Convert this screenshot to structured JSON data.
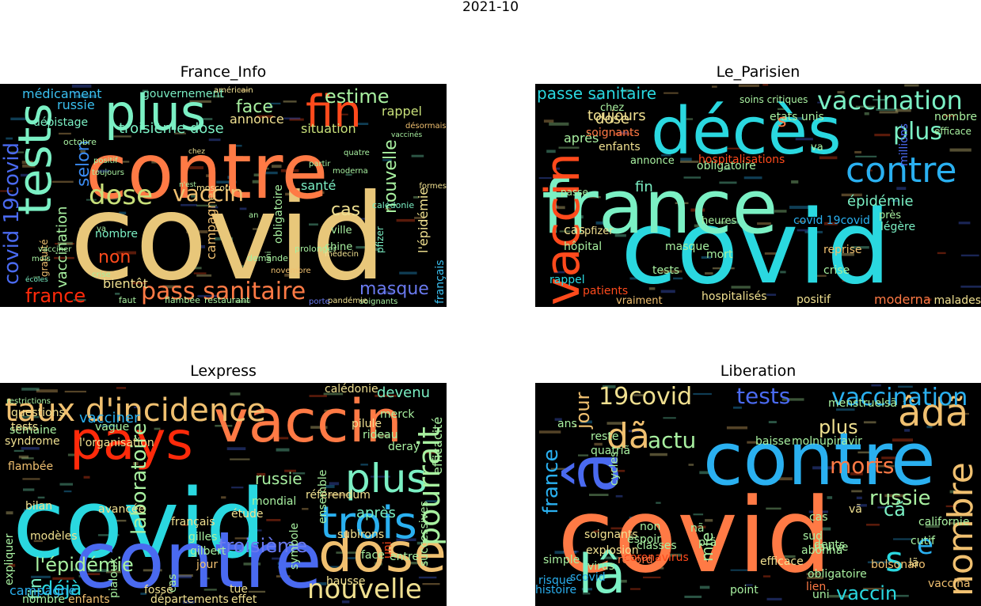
{
  "suptitle": "2021-10",
  "panels": [
    {
      "title": "France_Info",
      "words": [
        {
          "text": "covid",
          "color": "#E8C77A"
        },
        {
          "text": "contre",
          "color": "#FF7A45"
        },
        {
          "text": "plus",
          "color": "#7BF0C4"
        },
        {
          "text": "tests",
          "color": "#7BF0C4"
        },
        {
          "text": "fin",
          "color": "#FF4A1C"
        },
        {
          "text": "pass sanitaire",
          "color": "#FF7A45"
        },
        {
          "text": "dose",
          "color": "#C8E07A"
        },
        {
          "text": "vaccin",
          "color": "#F0C070"
        },
        {
          "text": "france",
          "color": "#FF2A0A"
        },
        {
          "text": "covid 19covid",
          "color": "#4A6AF0"
        },
        {
          "text": "estime",
          "color": "#A8F0A0"
        },
        {
          "text": "face",
          "color": "#A8F0A0"
        },
        {
          "text": "cas",
          "color": "#F0E090"
        },
        {
          "text": "non",
          "color": "#FF4A1C"
        },
        {
          "text": "masque",
          "color": "#6A7AF0"
        },
        {
          "text": "nouvelle",
          "color": "#A8F0A0"
        },
        {
          "text": "selon",
          "color": "#3A8AF0"
        },
        {
          "text": "vaccination",
          "color": "#A8F0A0"
        },
        {
          "text": "troisième dose",
          "color": "#7BF0C4"
        },
        {
          "text": "l'épidémie",
          "color": "#F0E090"
        },
        {
          "text": "médicament",
          "color": "#3AC0F0"
        },
        {
          "text": "russie",
          "color": "#3AC0F0"
        },
        {
          "text": "dépistage",
          "color": "#7BF0C4"
        },
        {
          "text": "annonce",
          "color": "#F0E090"
        },
        {
          "text": "situation",
          "color": "#C8E07A"
        },
        {
          "text": "rappel",
          "color": "#C8E07A"
        },
        {
          "text": "santé",
          "color": "#7BF0C4"
        },
        {
          "text": "bientôt",
          "color": "#F0E090"
        },
        {
          "text": "campagne",
          "color": "#F0C070"
        },
        {
          "text": "nombre",
          "color": "#7BF0C4"
        },
        {
          "text": "gouvernement",
          "color": "#7BF0C4"
        },
        {
          "text": "obligatoire",
          "color": "#A8F0A0"
        },
        {
          "text": "français",
          "color": "#3AC0F0"
        },
        {
          "text": "ville",
          "color": "#A8F0A0"
        },
        {
          "text": "chine",
          "color": "#A8F0A0"
        },
        {
          "text": "pfizer",
          "color": "#7BF0C4"
        },
        {
          "text": "moscou",
          "color": "#F0E090"
        },
        {
          "text": "gratuité",
          "color": "#F0C070"
        },
        {
          "text": "octobre",
          "color": "#A8F0A0"
        },
        {
          "text": "calédonie",
          "color": "#7BF0C4"
        },
        {
          "text": "prolonger",
          "color": "#A8F0A0"
        },
        {
          "text": "demande",
          "color": "#A8F0A0"
        },
        {
          "text": "faut",
          "color": "#A8F0A0"
        },
        {
          "text": "flambée",
          "color": "#A8F0A0"
        },
        {
          "text": "restaurant",
          "color": "#A8F0A0"
        },
        {
          "text": "soignants",
          "color": "#A8F0A0"
        },
        {
          "text": "crise",
          "color": "#A8F0A0"
        },
        {
          "text": "partir",
          "color": "#A8F0A0"
        },
        {
          "text": "moderna",
          "color": "#A8F0A0"
        },
        {
          "text": "quatre",
          "color": "#A8F0A0"
        },
        {
          "text": "positif",
          "color": "#A8F0A0"
        },
        {
          "text": "toujours",
          "color": "#A8F0A0"
        },
        {
          "text": "vacciner",
          "color": "#A8F0A0"
        },
        {
          "text": "mois",
          "color": "#A8F0A0"
        },
        {
          "text": "uni",
          "color": "#A8F0A0"
        },
        {
          "text": "an",
          "color": "#A8F0A0"
        },
        {
          "text": "médecin",
          "color": "#F0E090"
        },
        {
          "text": "écoles",
          "color": "#7BF0C4"
        },
        {
          "text": "va",
          "color": "#A8F0A0"
        },
        {
          "text": "américain",
          "color": "#F0E090"
        },
        {
          "text": "formes",
          "color": "#F0E090"
        },
        {
          "text": "pandémie",
          "color": "#F0E090"
        },
        {
          "text": "novembre",
          "color": "#F0C070"
        },
        {
          "text": "porte",
          "color": "#6A7AF0"
        },
        {
          "text": "désormais",
          "color": "#F0C070"
        },
        {
          "text": "chez",
          "color": "#F0E090"
        },
        {
          "text": "vaccinés",
          "color": "#A8F0A0"
        },
        {
          "text": "n'est",
          "color": "#A8F0A0"
        },
        {
          "text": "après",
          "color": "#A8F0A0"
        }
      ]
    },
    {
      "title": "Le_Parisien",
      "words": [
        {
          "text": "covid",
          "color": "#2AD8E0"
        },
        {
          "text": "france",
          "color": "#7BF0C4"
        },
        {
          "text": "décès",
          "color": "#2AD8E0"
        },
        {
          "text": "vaccin",
          "color": "#FF4A1C"
        },
        {
          "text": "contre",
          "color": "#2AB0F0"
        },
        {
          "text": "vaccination",
          "color": "#7BF0C4"
        },
        {
          "text": "plus",
          "color": "#7BF0C4"
        },
        {
          "text": "passe sanitaire",
          "color": "#2AD8E0"
        },
        {
          "text": "épidémie",
          "color": "#7BF0C4"
        },
        {
          "text": "toujours",
          "color": "#F0E090"
        },
        {
          "text": "dose",
          "color": "#F0E090"
        },
        {
          "text": "après",
          "color": "#A8F0A0"
        },
        {
          "text": "obligatoire",
          "color": "#A8F0A0"
        },
        {
          "text": "hospitalisations",
          "color": "#FF4A1C"
        },
        {
          "text": "fin",
          "color": "#7BF0C4"
        },
        {
          "text": "cas",
          "color": "#F0E090"
        },
        {
          "text": "pfizer",
          "color": "#F0E090"
        },
        {
          "text": "hôpital",
          "color": "#A8F0A0"
        },
        {
          "text": "rappel",
          "color": "#2AD8E0"
        },
        {
          "text": "patients",
          "color": "#FF4A1C"
        },
        {
          "text": "vraiment",
          "color": "#F0C070"
        },
        {
          "text": "hospitalisés",
          "color": "#F0E090"
        },
        {
          "text": "positif",
          "color": "#F0E090"
        },
        {
          "text": "moderna",
          "color": "#FF7A45"
        },
        {
          "text": "malades",
          "color": "#F0E090"
        },
        {
          "text": "crise",
          "color": "#A8F0A0"
        },
        {
          "text": "reprise",
          "color": "#F0C070"
        },
        {
          "text": "mort",
          "color": "#A8F0A0"
        },
        {
          "text": "masque",
          "color": "#A8F0A0"
        },
        {
          "text": "tests",
          "color": "#A8F0A0"
        },
        {
          "text": "heures",
          "color": "#A8F0A0"
        },
        {
          "text": "covid 19covid",
          "color": "#2AB0F0"
        },
        {
          "text": "légère",
          "color": "#7BF0C4"
        },
        {
          "text": "près",
          "color": "#A8F0A0"
        },
        {
          "text": "efficace",
          "color": "#A8F0A0"
        },
        {
          "text": "nombre",
          "color": "#A8F0A0"
        },
        {
          "text": "soignants",
          "color": "#FF7A45"
        },
        {
          "text": "enfants",
          "color": "#F0E090"
        },
        {
          "text": "etats unis",
          "color": "#A8F0A0"
        },
        {
          "text": "soins critiques",
          "color": "#A8F0A0"
        },
        {
          "text": "annonce",
          "color": "#A8F0A0"
        },
        {
          "text": "va",
          "color": "#A8F0A0"
        },
        {
          "text": "chez",
          "color": "#A8F0A0"
        },
        {
          "text": "passe",
          "color": "#A8F0A0"
        },
        {
          "text": "millions",
          "color": "#4A6AF0"
        },
        {
          "text": "s",
          "color": "#FF7A45"
        }
      ]
    },
    {
      "title": "Lexpress",
      "words": [
        {
          "text": "covid",
          "color": "#2AD8E0"
        },
        {
          "text": "contre",
          "color": "#4A6AF0"
        },
        {
          "text": "vaccin",
          "color": "#FF7A45"
        },
        {
          "text": "pays",
          "color": "#FF2A0A"
        },
        {
          "text": "taux d'incidence",
          "color": "#F0C070"
        },
        {
          "text": "dose",
          "color": "#F0C070"
        },
        {
          "text": "trois",
          "color": "#2AB0F0"
        },
        {
          "text": "plus",
          "color": "#7BF0C4"
        },
        {
          "text": "nouvelle",
          "color": "#F0E090"
        },
        {
          "text": "pourrait",
          "color": "#A8F0A0"
        },
        {
          "text": "l'épidémie",
          "color": "#A8F0A0"
        },
        {
          "text": "troisième",
          "color": "#6A7AF0"
        },
        {
          "text": "laboratoire",
          "color": "#A8F0A0"
        },
        {
          "text": "déjà",
          "color": "#2AD8E0"
        },
        {
          "text": "fin",
          "color": "#7BF0C4"
        },
        {
          "text": "campagne",
          "color": "#2AB0F0"
        },
        {
          "text": "russie",
          "color": "#A8F0A0"
        },
        {
          "text": "après",
          "color": "#7BF0C4"
        },
        {
          "text": "vacciner",
          "color": "#2AB0F0"
        },
        {
          "text": "devenu",
          "color": "#7BF0C4"
        },
        {
          "text": "efficacité",
          "color": "#A8F0A0"
        },
        {
          "text": "syndrome",
          "color": "#F0E090"
        },
        {
          "text": "semaine",
          "color": "#A8F0A0"
        },
        {
          "text": "questions",
          "color": "#F0E090"
        },
        {
          "text": "tests",
          "color": "#F0E090"
        },
        {
          "text": "flambée",
          "color": "#F0C070"
        },
        {
          "text": "bilan",
          "color": "#F0E090"
        },
        {
          "text": "modèles",
          "color": "#F0E090"
        },
        {
          "text": "expliquer",
          "color": "#A8F0A0"
        },
        {
          "text": "nombre",
          "color": "#A8F0A0"
        },
        {
          "text": "enfants",
          "color": "#F0C070"
        },
        {
          "text": "départements",
          "color": "#F0E090"
        },
        {
          "text": "effet",
          "color": "#F0E090"
        },
        {
          "text": "hausse",
          "color": "#F0E090"
        },
        {
          "text": "face",
          "color": "#A8F0A0"
        },
        {
          "text": "entre",
          "color": "#A8F0A0"
        },
        {
          "text": "uni",
          "color": "#FF4A1C"
        },
        {
          "text": "subirons",
          "color": "#F0E090"
        },
        {
          "text": "ensemble",
          "color": "#A8F0A0"
        },
        {
          "text": "référendum",
          "color": "#F0E090"
        },
        {
          "text": "étude",
          "color": "#F0E090"
        },
        {
          "text": "mondial",
          "color": "#A8F0A0"
        },
        {
          "text": "français",
          "color": "#F0E090"
        },
        {
          "text": "avancée",
          "color": "#F0E090"
        },
        {
          "text": "gilles",
          "color": "#A8F0A0"
        },
        {
          "text": "gilbert",
          "color": "#A8F0A0"
        },
        {
          "text": "jour",
          "color": "#F0C070"
        },
        {
          "text": "cas",
          "color": "#A8F0A0"
        },
        {
          "text": "tue",
          "color": "#F0E090"
        },
        {
          "text": "fossé",
          "color": "#F0E090"
        },
        {
          "text": "pilule",
          "color": "#F0E090"
        },
        {
          "text": "merck",
          "color": "#A8F0A0"
        },
        {
          "text": "calédonie",
          "color": "#F0E090"
        },
        {
          "text": "vague",
          "color": "#A8F0A0"
        },
        {
          "text": "l'organisation",
          "color": "#F0E090"
        },
        {
          "text": "deray",
          "color": "#A8F0A0"
        },
        {
          "text": "rideau",
          "color": "#A8F0A0"
        },
        {
          "text": "restrictions",
          "color": "#A8F0A0"
        },
        {
          "text": "pialoux",
          "color": "#A8F0A0"
        },
        {
          "text": "symbole",
          "color": "#A8F0A0"
        },
        {
          "text": "successives",
          "color": "#A8F0A0"
        }
      ]
    },
    {
      "title": "Liberation",
      "words": [
        {
          "text": "covid",
          "color": "#FF7A45"
        },
        {
          "text": "lâ",
          "color": "#7BF0C4"
        },
        {
          "text": "contre",
          "color": "#2AB0F0"
        },
        {
          "text": "â",
          "color": "#4A6AF0"
        },
        {
          "text": "âdã",
          "color": "#F0C070"
        },
        {
          "text": "nombre",
          "color": "#F0C070"
        },
        {
          "text": "dã",
          "color": "#F0C070"
        },
        {
          "text": "vaccination",
          "color": "#2AB0F0"
        },
        {
          "text": "tests",
          "color": "#4A6AF0"
        },
        {
          "text": "19covid",
          "color": "#F0E090"
        },
        {
          "text": "morts",
          "color": "#FF7A45"
        },
        {
          "text": "actu",
          "color": "#A8F0A0"
        },
        {
          "text": "plus",
          "color": "#F0E090"
        },
        {
          "text": "russie",
          "color": "#A8F0A0"
        },
        {
          "text": "s",
          "color": "#2AD8E0"
        },
        {
          "text": "e",
          "color": "#2AB0F0"
        },
        {
          "text": "cã",
          "color": "#7BF0C4"
        },
        {
          "text": "jour",
          "color": "#F0C070"
        },
        {
          "text": "france",
          "color": "#2AB0F0"
        },
        {
          "text": "vaccin",
          "color": "#2AD8E0"
        },
        {
          "text": "mie",
          "color": "#A8F0A0"
        },
        {
          "text": "soignants",
          "color": "#F0E090"
        },
        {
          "text": "explosion",
          "color": "#F0E090"
        },
        {
          "text": "coronavirus",
          "color": "#FF4A1C"
        },
        {
          "text": "molnupiravir",
          "color": "#A8F0A0"
        },
        {
          "text": "bolsonaro",
          "color": "#F0C070"
        },
        {
          "text": "lã",
          "color": "#F0E090"
        },
        {
          "text": "vã",
          "color": "#F0E090"
        },
        {
          "text": "cas",
          "color": "#A8F0A0"
        },
        {
          "text": "sud",
          "color": "#A8F0A0"
        },
        {
          "text": "prã",
          "color": "#A8F0A0"
        },
        {
          "text": "abonnã",
          "color": "#A8F0A0"
        },
        {
          "text": "ravive",
          "color": "#A8F0A0"
        },
        {
          "text": "dents",
          "color": "#A8F0A0"
        },
        {
          "text": "nã",
          "color": "#A8F0A0"
        },
        {
          "text": "uni",
          "color": "#A8F0A0"
        },
        {
          "text": "lien",
          "color": "#FF7A45"
        },
        {
          "text": "histoire",
          "color": "#2AB0F0"
        },
        {
          "text": "risque",
          "color": "#2AB0F0"
        },
        {
          "text": "scovid",
          "color": "#2AB0F0"
        },
        {
          "text": "simple",
          "color": "#A8F0A0"
        },
        {
          "text": "record",
          "color": "#FF7A45"
        },
        {
          "text": "efficace",
          "color": "#F0E090"
        },
        {
          "text": "point",
          "color": "#A8F0A0"
        },
        {
          "text": "ans",
          "color": "#A8F0A0"
        },
        {
          "text": "baisse",
          "color": "#A8F0A0"
        },
        {
          "text": "reste",
          "color": "#A8F0A0"
        },
        {
          "text": "quatriã",
          "color": "#A8F0A0"
        },
        {
          "text": "classes",
          "color": "#A8F0A0"
        },
        {
          "text": "espoir",
          "color": "#A8F0A0"
        },
        {
          "text": "virus",
          "color": "#A8F0A0"
        },
        {
          "text": "non",
          "color": "#A8F0A0"
        },
        {
          "text": "menstruelsã",
          "color": "#A8F0A0"
        },
        {
          "text": "cycles",
          "color": "#A8F0A0"
        },
        {
          "text": "vaccinã",
          "color": "#F0C070"
        },
        {
          "text": "californie",
          "color": "#A8F0A0"
        },
        {
          "text": "cutif",
          "color": "#A8F0A0"
        },
        {
          "text": "obligatoire",
          "color": "#A8F0A0"
        }
      ]
    }
  ]
}
